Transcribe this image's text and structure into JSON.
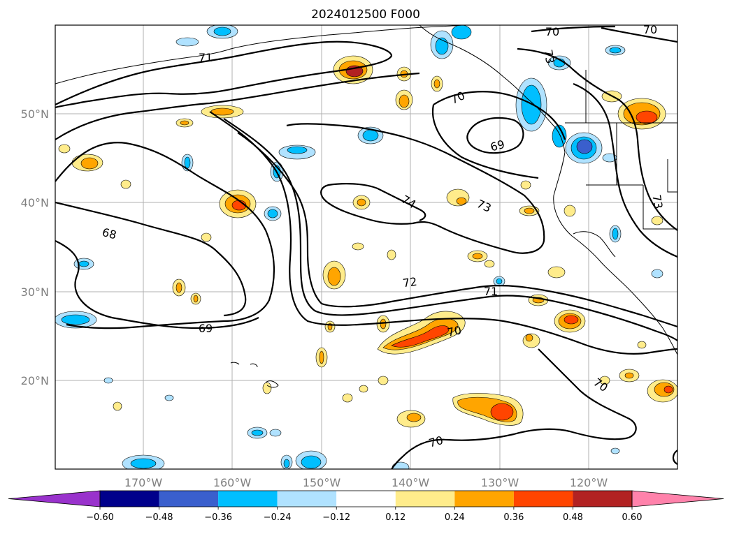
{
  "title": "2024012500 F000",
  "map": {
    "lat_labels": [
      "50°N",
      "40°N",
      "30°N",
      "20°N"
    ],
    "lon_labels": [
      "170°W",
      "160°W",
      "150°W",
      "140°W",
      "130°W",
      "120°W"
    ],
    "contour_labels": [
      "71",
      "70",
      "70",
      "70",
      "69",
      "74",
      "73",
      "72",
      "71",
      "70",
      "70",
      "68",
      "69",
      "70",
      "73",
      "73"
    ]
  },
  "colorbar": {
    "ticks": [
      "−0.60",
      "−0.48",
      "−0.36",
      "−0.24",
      "−0.12",
      "0.12",
      "0.24",
      "0.36",
      "0.48",
      "0.60"
    ],
    "colors": [
      "#9932cc",
      "#00008b",
      "#3a5fcd",
      "#00bfff",
      "#b0e2ff",
      "#ffffff",
      "#ffec8b",
      "#ffa500",
      "#ff4500",
      "#b22222",
      "#ff82ab"
    ]
  }
}
